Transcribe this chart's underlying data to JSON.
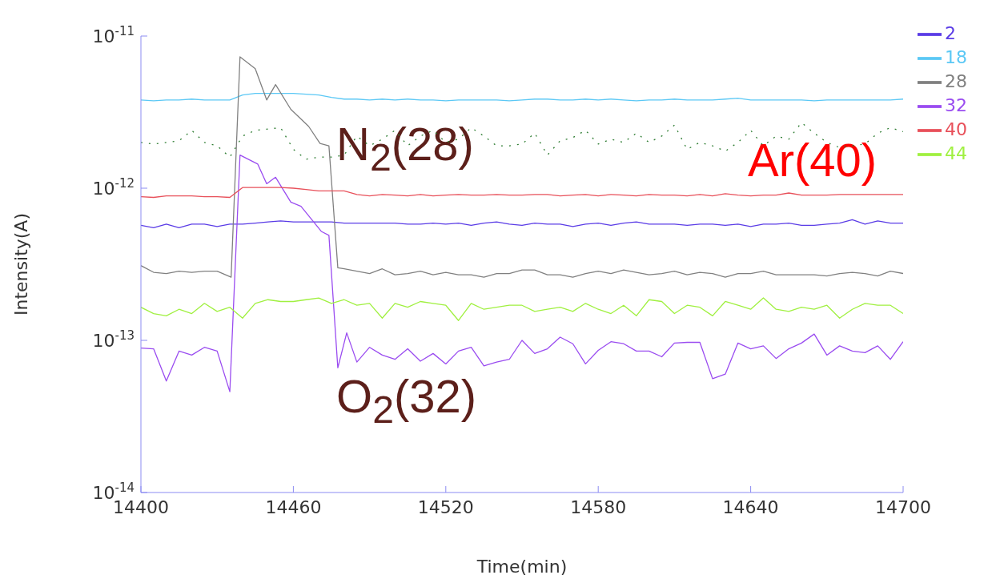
{
  "chart_data": {
    "type": "line",
    "xlabel": "Time(min)",
    "ylabel": "Intensity(A)",
    "log": "y",
    "xlim": [
      14400,
      14700
    ],
    "xticks": [
      14400,
      14460,
      14520,
      14580,
      14640,
      14700
    ],
    "ylim": [
      1e-14,
      1e-11
    ],
    "yticks": [
      {
        "value": 1e-14,
        "label": "10$^{-14}$"
      },
      {
        "value": 1e-13,
        "label": "10$^{-13}$"
      },
      {
        "value": 1e-12,
        "label": "10$^{-12}$"
      },
      {
        "value": 1e-11,
        "label": "10$^{-11}$"
      }
    ],
    "grid": false,
    "legend": "top right",
    "marker": "none",
    "x": [
      14400,
      14405,
      14410,
      14415,
      14420,
      14425,
      14430,
      14435,
      14440,
      14445,
      14450,
      14455,
      14460,
      14465,
      14470,
      14475,
      14480,
      14485,
      14490,
      14495,
      14500,
      14505,
      14510,
      14515,
      14520,
      14525,
      14530,
      14535,
      14540,
      14545,
      14550,
      14555,
      14560,
      14565,
      14570,
      14575,
      14580,
      14585,
      14590,
      14595,
      14600,
      14605,
      14610,
      14615,
      14620,
      14625,
      14630,
      14635,
      14640,
      14645,
      14650,
      14655,
      14660,
      14665,
      14670,
      14675,
      14680,
      14685,
      14690,
      14695,
      14700
    ],
    "series": [
      {
        "name": "2",
        "color": "#5a3ce6",
        "values": [
          5.7e-13,
          5.5e-13,
          5.8e-13,
          5.5e-13,
          5.8e-13,
          5.8e-13,
          5.6e-13,
          5.8e-13,
          5.8e-13,
          5.9e-13,
          6e-13,
          6.1e-13,
          6e-13,
          6e-13,
          6e-13,
          6e-13,
          5.9e-13,
          5.9e-13,
          5.9e-13,
          5.9e-13,
          5.9e-13,
          5.8e-13,
          5.8e-13,
          5.9e-13,
          5.8e-13,
          5.9e-13,
          5.7e-13,
          5.9e-13,
          6e-13,
          5.8e-13,
          5.7e-13,
          5.9e-13,
          5.8e-13,
          5.8e-13,
          5.6e-13,
          5.8e-13,
          5.9e-13,
          5.7e-13,
          5.9e-13,
          6e-13,
          5.8e-13,
          5.8e-13,
          5.8e-13,
          5.7e-13,
          5.8e-13,
          5.8e-13,
          5.7e-13,
          5.8e-13,
          5.6e-13,
          5.8e-13,
          5.8e-13,
          5.9e-13,
          5.7e-13,
          5.7e-13,
          5.8e-13,
          5.9e-13,
          6.2e-13,
          5.8e-13,
          6.1e-13,
          5.9e-13,
          5.9e-13
        ]
      },
      {
        "name": "18",
        "color": "#5bc8f5",
        "values": [
          3.8e-12,
          3.75e-12,
          3.8e-12,
          3.8e-12,
          3.85e-12,
          3.8e-12,
          3.8e-12,
          3.8e-12,
          4.1e-12,
          4.2e-12,
          4.2e-12,
          4.2e-12,
          4.2e-12,
          4.15e-12,
          4.1e-12,
          3.95e-12,
          3.85e-12,
          3.85e-12,
          3.8e-12,
          3.85e-12,
          3.8e-12,
          3.85e-12,
          3.8e-12,
          3.8e-12,
          3.75e-12,
          3.8e-12,
          3.8e-12,
          3.8e-12,
          3.8e-12,
          3.75e-12,
          3.8e-12,
          3.85e-12,
          3.85e-12,
          3.8e-12,
          3.8e-12,
          3.85e-12,
          3.8e-12,
          3.85e-12,
          3.8e-12,
          3.75e-12,
          3.8e-12,
          3.8e-12,
          3.85e-12,
          3.8e-12,
          3.8e-12,
          3.8e-12,
          3.85e-12,
          3.9e-12,
          3.8e-12,
          3.8e-12,
          3.8e-12,
          3.8e-12,
          3.8e-12,
          3.75e-12,
          3.8e-12,
          3.8e-12,
          3.8e-12,
          3.8e-12,
          3.8e-12,
          3.8e-12,
          3.85e-12
        ]
      },
      {
        "name": "28",
        "color": "#808080",
        "x": [
          14400,
          14405,
          14410,
          14415,
          14420,
          14425,
          14430,
          14435.5,
          14439,
          14445,
          14449.5,
          14453,
          14459,
          14466,
          14470.5,
          14474,
          14477.5,
          14480,
          14485,
          14490,
          14495,
          14500,
          14505,
          14510,
          14515,
          14520,
          14525,
          14530,
          14535,
          14540,
          14545,
          14550,
          14555,
          14560,
          14565,
          14570,
          14575,
          14580,
          14585,
          14590,
          14595,
          14600,
          14605,
          14610,
          14615,
          14620,
          14625,
          14630,
          14635,
          14640,
          14645,
          14650,
          14655,
          14660,
          14665,
          14670,
          14675,
          14680,
          14685,
          14690,
          14695,
          14700
        ],
        "values": [
          3.1e-13,
          2.8e-13,
          2.75e-13,
          2.85e-13,
          2.8e-13,
          2.85e-13,
          2.85e-13,
          2.6e-13,
          7.3e-12,
          6.1e-12,
          3.8e-12,
          4.8e-12,
          3.3e-12,
          2.55e-12,
          1.97e-12,
          1.9e-12,
          3e-13,
          2.95e-13,
          2.85e-13,
          2.75e-13,
          2.95e-13,
          2.7e-13,
          2.75e-13,
          2.85e-13,
          2.7e-13,
          2.8e-13,
          2.7e-13,
          2.7e-13,
          2.6e-13,
          2.75e-13,
          2.75e-13,
          2.9e-13,
          2.9e-13,
          2.7e-13,
          2.7e-13,
          2.6e-13,
          2.75e-13,
          2.85e-13,
          2.75e-13,
          2.9e-13,
          2.8e-13,
          2.7e-13,
          2.75e-13,
          2.85e-13,
          2.7e-13,
          2.8e-13,
          2.75e-13,
          2.6e-13,
          2.75e-13,
          2.75e-13,
          2.85e-13,
          2.7e-13,
          2.7e-13,
          2.7e-13,
          2.7e-13,
          2.65e-13,
          2.75e-13,
          2.8e-13,
          2.75e-13,
          2.65e-13,
          2.85e-13,
          2.75e-13
        ]
      },
      {
        "name": "32",
        "color": "#9a4cf0",
        "x": [
          14400,
          14405,
          14410,
          14415,
          14420,
          14425,
          14430,
          14435,
          14439,
          14446,
          14449.5,
          14453,
          14459,
          14463,
          14471,
          14474,
          14477.5,
          14481,
          14485,
          14490,
          14495,
          14500,
          14505,
          14510,
          14515,
          14520,
          14525,
          14530,
          14535,
          14540,
          14545,
          14550,
          14555,
          14560,
          14565,
          14570,
          14575,
          14580,
          14585,
          14590,
          14595,
          14600,
          14605,
          14610,
          14615,
          14620,
          14625,
          14630,
          14635,
          14640,
          14645,
          14650,
          14655,
          14660,
          14665,
          14670,
          14675,
          14680,
          14685,
          14690,
          14695,
          14700
        ],
        "values": [
          8.9e-14,
          8.8e-14,
          5.4e-14,
          8.5e-14,
          8e-14,
          9e-14,
          8.5e-14,
          4.6e-14,
          1.65e-12,
          1.44e-12,
          1.07e-12,
          1.18e-12,
          8.1e-13,
          7.6e-13,
          5.2e-13,
          4.9e-13,
          6.6e-14,
          1.12e-13,
          7.2e-14,
          9e-14,
          8e-14,
          7.5e-14,
          8.8e-14,
          7.3e-14,
          8.2e-14,
          7e-14,
          8.5e-14,
          9e-14,
          6.8e-14,
          7.2e-14,
          7.5e-14,
          1e-13,
          8.2e-14,
          8.8e-14,
          1.05e-13,
          9.5e-14,
          7e-14,
          8.6e-14,
          9.8e-14,
          9.5e-14,
          8.5e-14,
          8.5e-14,
          7.8e-14,
          9.6e-14,
          9.7e-14,
          9.7e-14,
          5.6e-14,
          6e-14,
          9.6e-14,
          8.8e-14,
          9.2e-14,
          7.6e-14,
          8.8e-14,
          9.6e-14,
          1.1e-13,
          8e-14,
          9.2e-14,
          8.5e-14,
          8.3e-14,
          9.2e-14,
          7.5e-14,
          9.8e-14
        ]
      },
      {
        "name": "40",
        "color": "#e8505a",
        "values": [
          8.8e-13,
          8.7e-13,
          8.9e-13,
          8.9e-13,
          8.9e-13,
          8.8e-13,
          8.8e-13,
          8.7e-13,
          1.01e-12,
          1.01e-12,
          1.01e-12,
          1.01e-12,
          1e-12,
          9.8e-13,
          9.6e-13,
          9.6e-13,
          9.6e-13,
          9.1e-13,
          8.9e-13,
          9.1e-13,
          9e-13,
          8.9e-13,
          9.1e-13,
          8.9e-13,
          9e-13,
          9.1e-13,
          9e-13,
          9e-13,
          9.1e-13,
          9e-13,
          9e-13,
          9.1e-13,
          9.1e-13,
          8.9e-13,
          9e-13,
          9.1e-13,
          8.9e-13,
          9.1e-13,
          9e-13,
          8.9e-13,
          9.1e-13,
          9e-13,
          9e-13,
          8.9e-13,
          9.1e-13,
          8.9e-13,
          9.2e-13,
          9e-13,
          8.9e-13,
          9e-13,
          9e-13,
          9.3e-13,
          9e-13,
          9e-13,
          9e-13,
          9.1e-13,
          9.1e-13,
          9.1e-13,
          9.1e-13,
          9.1e-13,
          9.1e-13
        ]
      },
      {
        "name": "44",
        "color": "#a0f040",
        "values": [
          1.65e-13,
          1.5e-13,
          1.45e-13,
          1.6e-13,
          1.5e-13,
          1.75e-13,
          1.55e-13,
          1.65e-13,
          1.4e-13,
          1.75e-13,
          1.85e-13,
          1.8e-13,
          1.8e-13,
          1.85e-13,
          1.9e-13,
          1.75e-13,
          1.85e-13,
          1.7e-13,
          1.75e-13,
          1.4e-13,
          1.75e-13,
          1.65e-13,
          1.8e-13,
          1.75e-13,
          1.7e-13,
          1.35e-13,
          1.75e-13,
          1.6e-13,
          1.65e-13,
          1.7e-13,
          1.7e-13,
          1.55e-13,
          1.6e-13,
          1.65e-13,
          1.55e-13,
          1.75e-13,
          1.6e-13,
          1.5e-13,
          1.7e-13,
          1.45e-13,
          1.85e-13,
          1.8e-13,
          1.5e-13,
          1.7e-13,
          1.65e-13,
          1.45e-13,
          1.8e-13,
          1.7e-13,
          1.6e-13,
          1.9e-13,
          1.6e-13,
          1.55e-13,
          1.65e-13,
          1.6e-13,
          1.7e-13,
          1.4e-13,
          1.6e-13,
          1.75e-13,
          1.7e-13,
          1.7e-13,
          1.5e-13
        ]
      },
      {
        "color": "#2e7d32",
        "line_style": "dotted",
        "values": [
          2e-12,
          1.95e-12,
          2e-12,
          2.05e-12,
          2.4e-12,
          2e-12,
          1.9e-12,
          1.6e-12,
          2.2e-12,
          2.4e-12,
          2.45e-12,
          2.5e-12,
          1.8e-12,
          1.55e-12,
          1.6e-12,
          1.6e-12,
          1.65e-12,
          2.2e-12,
          1.9e-12,
          2.1e-12,
          2.4e-12,
          1.9e-12,
          2.2e-12,
          2.4e-12,
          2e-12,
          2.1e-12,
          2.5e-12,
          2.2e-12,
          1.9e-12,
          1.9e-12,
          1.95e-12,
          2.3e-12,
          1.65e-12,
          2.05e-12,
          2.15e-12,
          2.4e-12,
          1.95e-12,
          2.1e-12,
          2e-12,
          2.3e-12,
          2e-12,
          2.2e-12,
          2.6e-12,
          1.8e-12,
          2e-12,
          1.9e-12,
          1.75e-12,
          2e-12,
          2.4e-12,
          1.9e-12,
          2.2e-12,
          2.1e-12,
          2.7e-12,
          2.3e-12,
          2e-12,
          1.85e-12,
          1.9e-12,
          1.95e-12,
          2.3e-12,
          2.5e-12,
          2.35e-12
        ]
      }
    ],
    "annotations": [
      "N$_{2}$(28)",
      "O$_{2}$(32)",
      "Ar(40)"
    ]
  }
}
